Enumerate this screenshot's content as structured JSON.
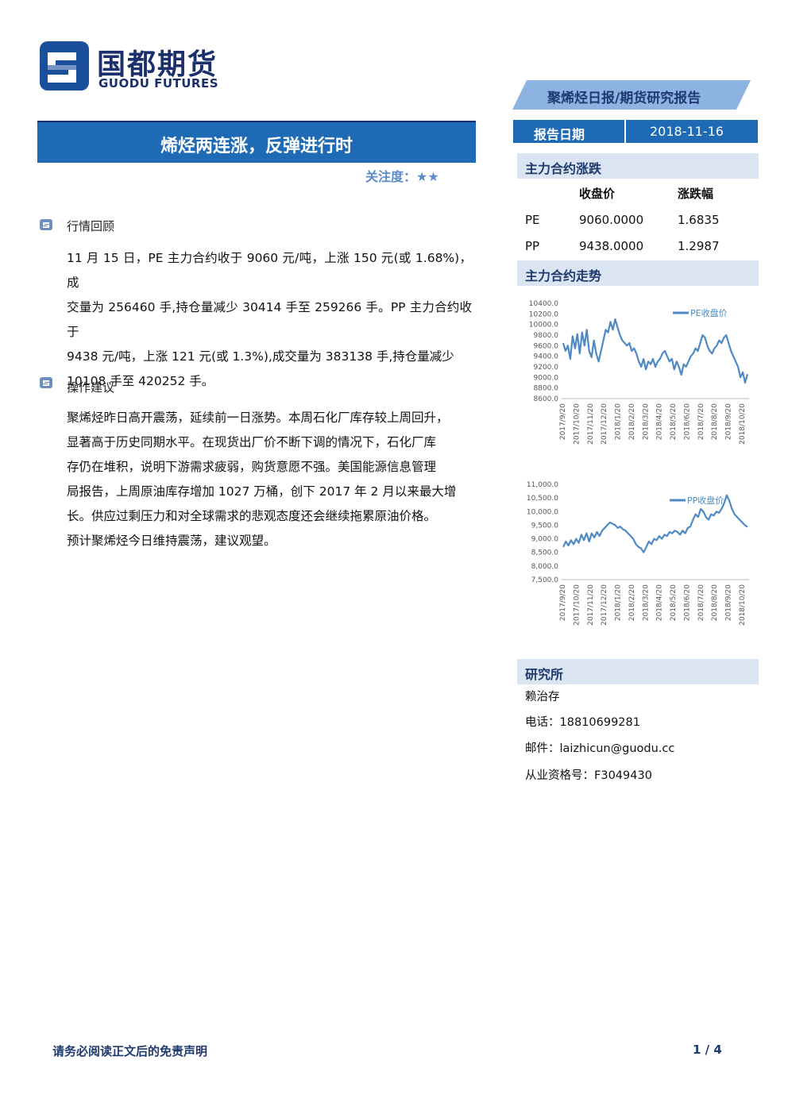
{
  "logo": {
    "cn": "国都期货",
    "en": "GUODU FUTURES"
  },
  "report_type": "聚烯烃日报/期货研究报告",
  "title": "烯烃两连涨，反弹进行时",
  "attention": "关注度：★★",
  "sections": [
    {
      "heading": "行情回顾",
      "lines": [
        "11 月 15 日，PE 主力合约收于 9060 元/吨，上涨 150 元(或 1.68%)，成",
        "交量为 256460 手,持仓量减少 30414 手至 259266 手。PP 主力合约收于",
        "9438 元/吨，上涨 121 元(或 1.3%),成交量为 383138 手,持仓量减少",
        "10108 手至 420252 手。"
      ]
    },
    {
      "heading": "操作建议",
      "lines": [
        "聚烯烃昨日高开震荡，延续前一日涨势。本周石化厂库存较上周回升，",
        "显著高于历史同期水平。在现货出厂价不断下调的情况下，石化厂库",
        "存仍在堆积，说明下游需求疲弱，购货意愿不强。美国能源信息管理",
        "局报告，上周原油库存增加 1027 万桶，创下 2017 年 2 月以来最大增",
        "长。供应过剩压力和对全球需求的悲观态度还会继续拖累原油价格。",
        "预计聚烯烃今日维持震荡，建议观望。"
      ]
    }
  ],
  "sidebar": {
    "date_label": "报告日期",
    "date_value": "2018-11-16",
    "change_heading": "主力合约涨跌",
    "table": {
      "headers": [
        "收盘价",
        "涨跌幅"
      ],
      "rows": [
        {
          "name": "PE",
          "close": "9060.0000",
          "change": "1.6835"
        },
        {
          "name": "PP",
          "close": "9438.0000",
          "change": "1.2987"
        }
      ]
    },
    "trend_heading": "主力合约走势",
    "research_heading": "研究所",
    "analyst": "赖治存",
    "phone": "电话：18810699281",
    "email": "邮件：laizhicun@guodu.cc",
    "license": "从业资格号：F3049430"
  },
  "chart_data": [
    {
      "type": "line",
      "series": [
        {
          "name": "PE收盘价"
        }
      ],
      "x_ticks": [
        "2017/9/20",
        "2017/10/20",
        "2017/11/20",
        "2017/12/20",
        "2018/1/20",
        "2018/2/20",
        "2018/3/20",
        "2018/4/20",
        "2018/5/20",
        "2018/6/20",
        "2018/7/20",
        "2018/8/20",
        "2018/9/20",
        "2018/10/20"
      ],
      "y_ticks": [
        "8600.0",
        "8800.0",
        "9000.0",
        "9200.0",
        "9400.0",
        "9600.0",
        "9800.0",
        "10000.0",
        "10200.0",
        "10400.0"
      ],
      "ylim": [
        8600,
        10400
      ],
      "values": [
        9650,
        9500,
        9600,
        9350,
        9780,
        9550,
        9820,
        9450,
        9850,
        9600,
        9900,
        9500,
        9380,
        9700,
        9450,
        9300,
        9500,
        9700,
        9900,
        9850,
        10050,
        9900,
        10100,
        9950,
        9800,
        9700,
        9650,
        9600,
        9650,
        9500,
        9550,
        9450,
        9300,
        9200,
        9350,
        9150,
        9300,
        9250,
        9350,
        9200,
        9300,
        9350,
        9450,
        9500,
        9400,
        9300,
        9350,
        9150,
        9300,
        9200,
        9050,
        9250,
        9200,
        9300,
        9400,
        9450,
        9550,
        9500,
        9650,
        9800,
        9750,
        9600,
        9500,
        9450,
        9550,
        9600,
        9700,
        9650,
        9750,
        9800,
        9650,
        9500,
        9400,
        9300,
        9200,
        9000,
        9100,
        8900,
        9060
      ]
    },
    {
      "type": "line",
      "series": [
        {
          "name": "PP收盘价"
        }
      ],
      "x_ticks": [
        "2017/9/20",
        "2017/10/20",
        "2017/11/20",
        "2017/12/20",
        "2018/1/20",
        "2018/2/20",
        "2018/3/20",
        "2018/4/20",
        "2018/5/20",
        "2018/6/20",
        "2018/7/20",
        "2018/8/20",
        "2018/9/20",
        "2018/10/20"
      ],
      "y_ticks": [
        "7,500.0",
        "8,000.0",
        "8,500.0",
        "9,000.0",
        "9,500.0",
        "10,000.0",
        "10,500.0",
        "11,000.0"
      ],
      "ylim": [
        7500,
        11000
      ],
      "values": [
        8700,
        8900,
        8750,
        8950,
        8800,
        9000,
        8850,
        9150,
        8950,
        9200,
        8900,
        9200,
        9050,
        9250,
        9100,
        9300,
        9400,
        9500,
        9600,
        9550,
        9500,
        9400,
        9450,
        9350,
        9300,
        9200,
        9100,
        9000,
        8800,
        8700,
        8650,
        8500,
        8700,
        8900,
        8800,
        9000,
        8950,
        9100,
        9000,
        9150,
        9100,
        9250,
        9200,
        9300,
        9250,
        9150,
        9300,
        9200,
        9400,
        9450,
        9700,
        9900,
        9800,
        10100,
        10000,
        9800,
        9700,
        9900,
        9850,
        10000,
        9950,
        10100,
        10300,
        10600,
        10400,
        10100,
        9900,
        9800,
        9700,
        9600,
        9500,
        9438
      ]
    }
  ],
  "footer": {
    "disclaimer": "请务必阅读正文后的免责声明",
    "page": "1 / 4"
  }
}
